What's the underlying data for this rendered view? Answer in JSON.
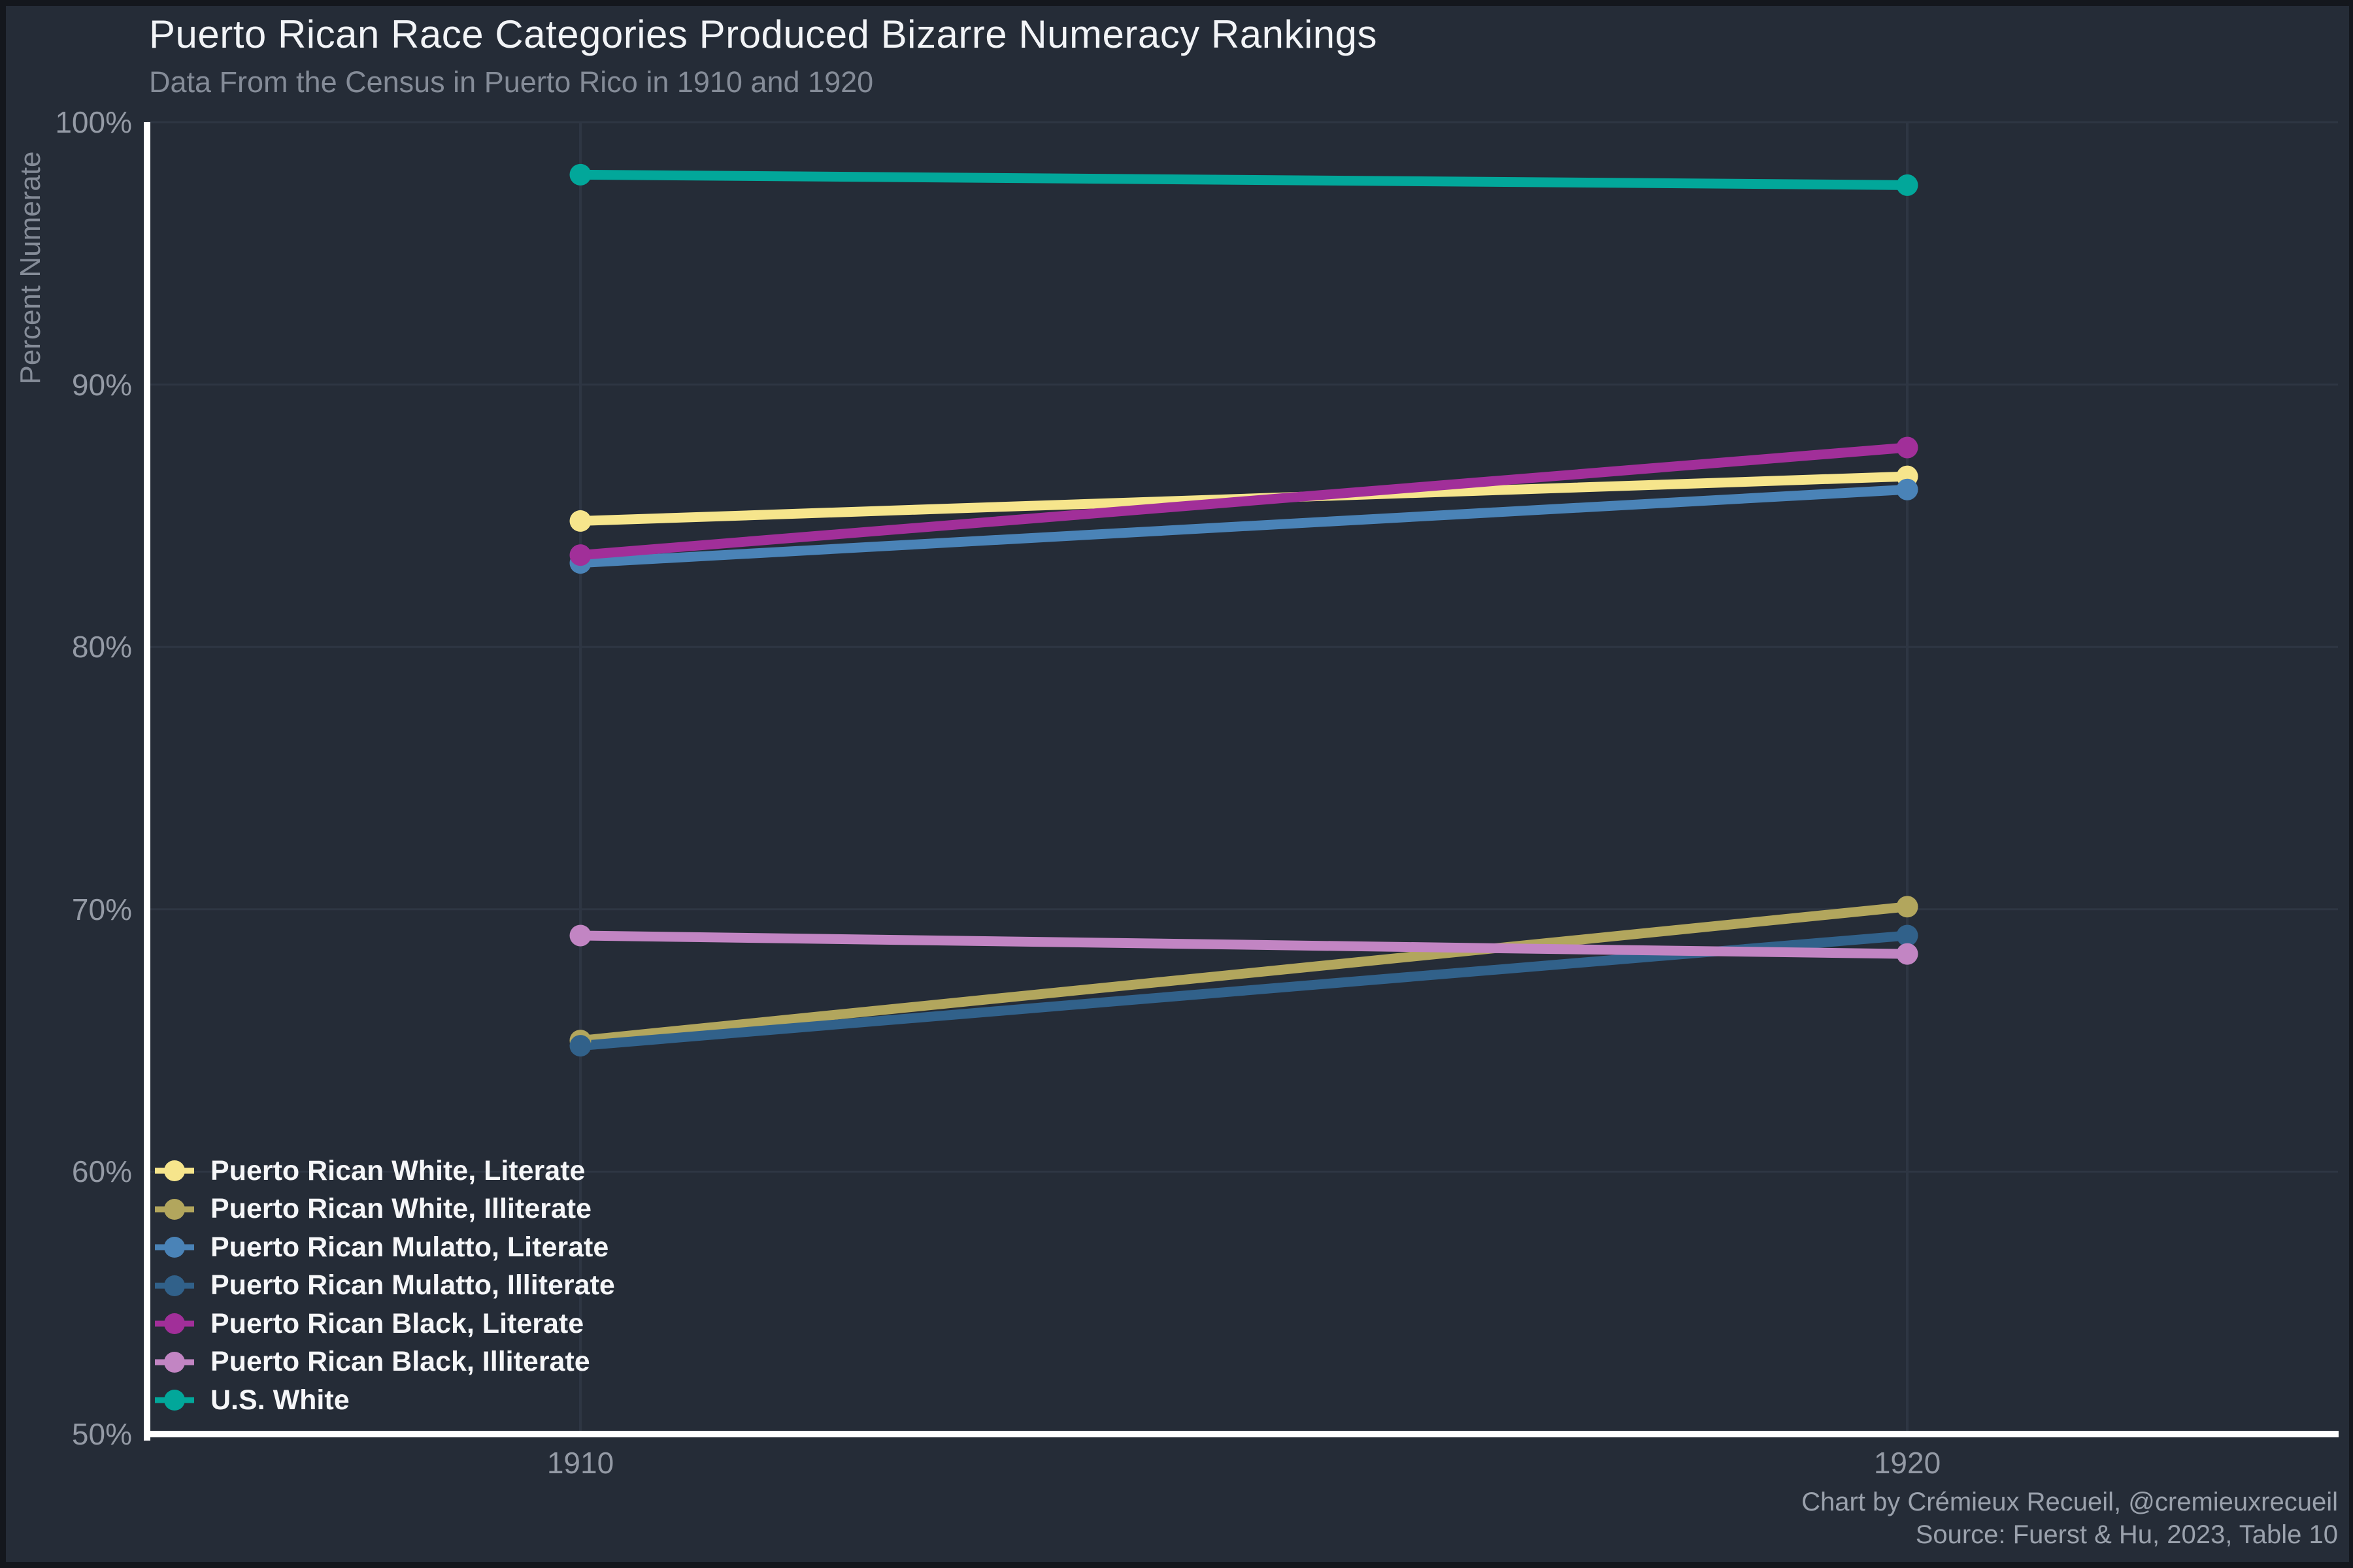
{
  "chart_data": {
    "type": "line",
    "title": "Puerto Rican Race Categories Produced Bizarre Numeracy Rankings",
    "subtitle": "Data From the Census in Puerto Rico in 1910 and 1920",
    "ylabel": "Percent Numerate",
    "x_labels": [
      "1910",
      "1920"
    ],
    "ylim": [
      50,
      100
    ],
    "y_ticks": [
      {
        "value": 100,
        "label": "100%"
      },
      {
        "value": 90,
        "label": "90%"
      },
      {
        "value": 80,
        "label": "80%"
      },
      {
        "value": 70,
        "label": "70%"
      },
      {
        "value": 60,
        "label": "60%"
      },
      {
        "value": 50,
        "label": "50%"
      }
    ],
    "grid": true,
    "legend_position": "bottom-left",
    "series": [
      {
        "name": "Puerto Rican White, Literate",
        "color": "#f6e58c",
        "values": [
          84.8,
          86.5
        ]
      },
      {
        "name": "Puerto Rican White, Illiterate",
        "color": "#b2a65d",
        "values": [
          65.0,
          70.1
        ]
      },
      {
        "name": "Puerto Rican Mulatto, Literate",
        "color": "#4a83b7",
        "values": [
          83.2,
          86.0
        ]
      },
      {
        "name": "Puerto Rican Mulatto, Illiterate",
        "color": "#31618a",
        "values": [
          64.8,
          69.0
        ]
      },
      {
        "name": "Puerto Rican Black, Literate",
        "color": "#a12f99",
        "values": [
          83.5,
          87.6
        ]
      },
      {
        "name": "Puerto Rican Black, Illiterate",
        "color": "#c285c3",
        "values": [
          69.0,
          68.3
        ]
      },
      {
        "name": "U.S. White",
        "color": "#02a79a",
        "values": [
          98.0,
          97.6
        ]
      }
    ],
    "credits": [
      "Chart by Crémieux Recueil, @cremieuxrecueil",
      "Source: Fuerst & Hu, 2023, Table 10"
    ],
    "colors": {
      "background": "#252c37",
      "border": "#14171d",
      "grid": "#2e3643",
      "axis_line": "#ffffff",
      "title_text": "#f2f4f7",
      "subtitle_text": "#858c98",
      "tick_text": "#949aa5",
      "legend_text": "#f5f6f8",
      "credits_text": "#9aa1ac"
    }
  }
}
